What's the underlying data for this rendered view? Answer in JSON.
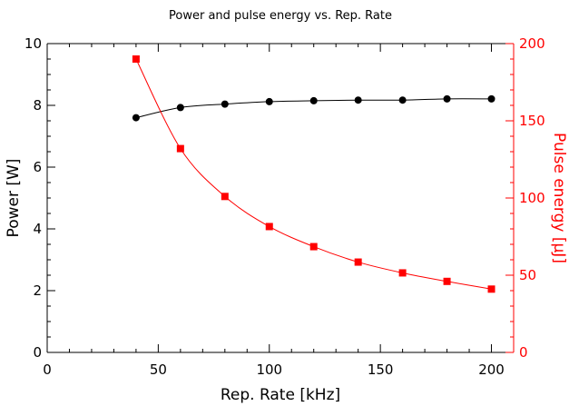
{
  "chart_data": {
    "type": "line",
    "title": "Power and pulse energy vs. Rep. Rate",
    "xlabel": "Rep. Rate [kHz]",
    "ylabel_left": "Power [W]",
    "ylabel_right": "Pulse energy [µJ]",
    "xlim": [
      0,
      210
    ],
    "ylim_left": [
      0,
      10
    ],
    "ylim_right": [
      0,
      200
    ],
    "x_ticks": [
      "0",
      "50",
      "100",
      "150",
      "200"
    ],
    "y_ticks_left": [
      "0",
      "2",
      "4",
      "6",
      "8",
      "10"
    ],
    "y_ticks_right": [
      "0",
      "50",
      "100",
      "150",
      "200"
    ],
    "grid": false,
    "colors": {
      "power": "#000000",
      "pulse_energy": "#ff0000"
    },
    "x": [
      40,
      60,
      80,
      100,
      120,
      140,
      160,
      180,
      200
    ],
    "series": [
      {
        "axis": "left",
        "marker": "circle",
        "values": [
          7.6,
          7.93,
          8.04,
          8.12,
          8.15,
          8.17,
          8.17,
          8.21,
          8.21
        ]
      },
      {
        "axis": "right",
        "marker": "square",
        "values": [
          190,
          132,
          101,
          81.5,
          68.5,
          58.5,
          51.5,
          46,
          41
        ]
      }
    ]
  }
}
